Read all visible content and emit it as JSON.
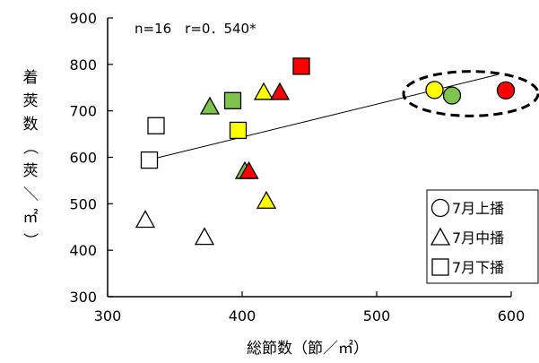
{
  "chart_data": {
    "type": "scatter",
    "annotation": "n=16　r=0．540*",
    "xlabel": "総節数（節／㎡）",
    "ylabel_chars": [
      "着",
      "莢",
      "数",
      "（",
      "莢",
      "／",
      "㎡",
      "）"
    ],
    "xlim": [
      300,
      600
    ],
    "ylim": [
      300,
      900
    ],
    "x_ticks": [
      "300",
      "400",
      "500",
      "600"
    ],
    "y_ticks": [
      "300",
      "400",
      "500",
      "600",
      "700",
      "800",
      "900"
    ],
    "regression": {
      "x_start": 330,
      "y_start": 594,
      "x_end": 590,
      "y_end": 778
    },
    "highlight_ellipse": {
      "description": "dashed-ellipse around three points near x 545–600"
    },
    "legend": [
      {
        "marker": "circle",
        "label": "7月上播"
      },
      {
        "marker": "triangle",
        "label": "7月中播"
      },
      {
        "marker": "square",
        "label": "7月下播"
      }
    ],
    "colors": {
      "yellow": "#ffff00",
      "green": "#7fc34f",
      "red": "#ff0000",
      "white": "#ffffff"
    },
    "points": [
      {
        "x": 543,
        "y": 745,
        "marker": "circle",
        "color": "yellow"
      },
      {
        "x": 556,
        "y": 733,
        "marker": "circle",
        "color": "green"
      },
      {
        "x": 596,
        "y": 744,
        "marker": "circle",
        "color": "red"
      },
      {
        "x": 328,
        "y": 465,
        "marker": "triangle",
        "color": "white"
      },
      {
        "x": 372,
        "y": 428,
        "marker": "triangle",
        "color": "white"
      },
      {
        "x": 376,
        "y": 709,
        "marker": "triangle",
        "color": "green"
      },
      {
        "x": 402,
        "y": 570,
        "marker": "triangle",
        "color": "green"
      },
      {
        "x": 405,
        "y": 570,
        "marker": "triangle",
        "color": "red"
      },
      {
        "x": 416,
        "y": 740,
        "marker": "triangle",
        "color": "yellow"
      },
      {
        "x": 418,
        "y": 506,
        "marker": "triangle",
        "color": "yellow"
      },
      {
        "x": 428,
        "y": 740,
        "marker": "triangle",
        "color": "red"
      },
      {
        "x": 331,
        "y": 594,
        "marker": "square",
        "color": "white"
      },
      {
        "x": 336,
        "y": 668,
        "marker": "square",
        "color": "white"
      },
      {
        "x": 393,
        "y": 722,
        "marker": "square",
        "color": "green"
      },
      {
        "x": 397,
        "y": 658,
        "marker": "square",
        "color": "yellow"
      },
      {
        "x": 444,
        "y": 796,
        "marker": "square",
        "color": "red"
      }
    ]
  }
}
